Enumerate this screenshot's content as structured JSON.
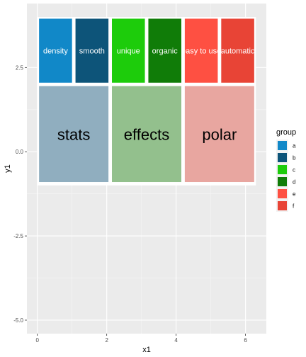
{
  "chart_data": {
    "type": "rect",
    "title": "",
    "xlabel": "x1",
    "ylabel": "y1",
    "xlim": [
      -0.3,
      6.6
    ],
    "ylim": [
      -5.4,
      4.4
    ],
    "x_ticks": [
      0,
      2,
      4,
      6
    ],
    "x_tick_labels": [
      "0",
      "2",
      "4",
      "6"
    ],
    "y_ticks": [
      2.5,
      0.0,
      -2.5,
      -5.0
    ],
    "y_tick_labels": [
      "2.5",
      "0.0",
      "-2.5",
      "-5.0"
    ],
    "grid": true,
    "legend": {
      "title": "group",
      "position": "right",
      "entries": [
        {
          "label": "a",
          "color": "#1188c8"
        },
        {
          "label": "b",
          "color": "#0d5479"
        },
        {
          "label": "c",
          "color": "#1dcc0b"
        },
        {
          "label": "d",
          "color": "#107c08"
        },
        {
          "label": "e",
          "color": "#fe5042"
        },
        {
          "label": "f",
          "color": "#e84436"
        }
      ]
    },
    "background_rect": {
      "x0": 0,
      "x1": 6.3,
      "y0": -1.0,
      "y1": 4.0,
      "fill": "#ffffff"
    },
    "blocks": [
      {
        "label": "stats",
        "x0": 0.05,
        "x1": 2.05,
        "y0": -0.9,
        "y1": 1.95,
        "color": "#90aebf"
      },
      {
        "label": "effects",
        "x0": 2.15,
        "x1": 4.15,
        "y0": -0.9,
        "y1": 1.95,
        "color": "#93c08d"
      },
      {
        "label": "polar",
        "x0": 4.25,
        "x1": 6.25,
        "y0": -0.9,
        "y1": 1.95,
        "color": "#e8a6a0"
      }
    ],
    "tiles": [
      {
        "group": "a",
        "label": "density",
        "x0": 0.05,
        "x1": 1.0,
        "y0": 2.05,
        "y1": 3.95
      },
      {
        "group": "b",
        "label": "smooth",
        "x0": 1.1,
        "x1": 2.05,
        "y0": 2.05,
        "y1": 3.95
      },
      {
        "group": "c",
        "label": "unique",
        "x0": 2.15,
        "x1": 3.1,
        "y0": 2.05,
        "y1": 3.95
      },
      {
        "group": "d",
        "label": "organic",
        "x0": 3.2,
        "x1": 4.15,
        "y0": 2.05,
        "y1": 3.95
      },
      {
        "group": "e",
        "label": "easy to use",
        "x0": 4.25,
        "x1": 5.2,
        "y0": 2.05,
        "y1": 3.95
      },
      {
        "group": "f",
        "label": "automatic",
        "x0": 5.3,
        "x1": 6.25,
        "y0": 2.05,
        "y1": 3.95
      }
    ]
  }
}
